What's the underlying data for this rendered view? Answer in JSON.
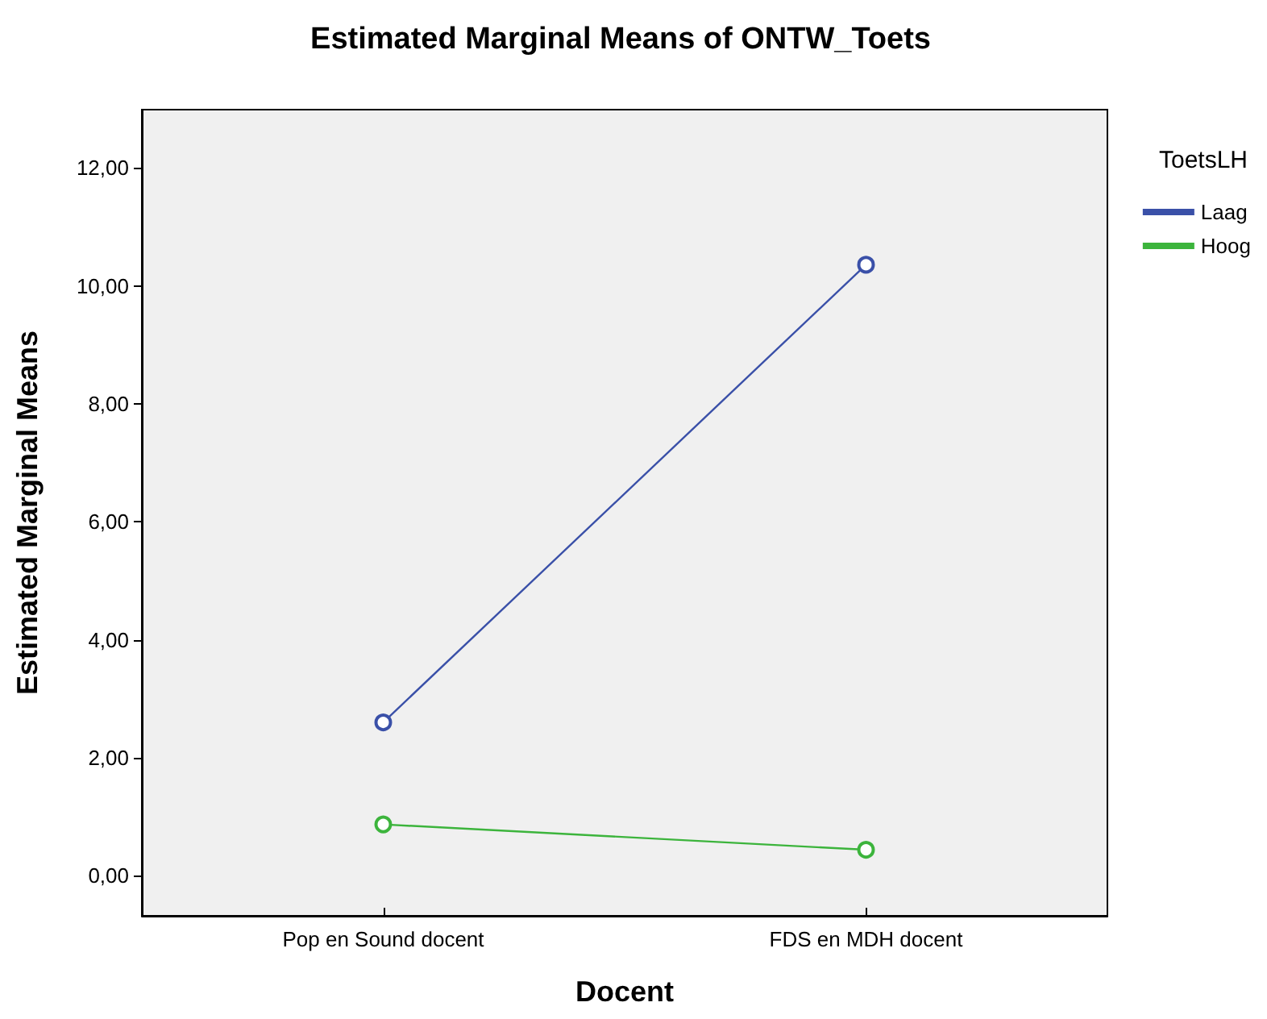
{
  "chart_data": {
    "type": "line",
    "title": "Estimated Marginal Means of ONTW_Toets",
    "xlabel": "Docent",
    "ylabel": "Estimated Marginal Means",
    "legend_title": "ToetsLH",
    "categories": [
      "Pop en Sound docent",
      "FDS en MDH docent"
    ],
    "series": [
      {
        "name": "Laag",
        "color": "#3a50a8",
        "values": [
          2.6,
          10.36
        ]
      },
      {
        "name": "Hoog",
        "color": "#3cb43c",
        "values": [
          0.87,
          0.44
        ]
      }
    ],
    "ylim": [
      -0.68,
      12.99
    ],
    "yticks": [
      {
        "value": 0,
        "label": "0,00"
      },
      {
        "value": 2,
        "label": "2,00"
      },
      {
        "value": 4,
        "label": "4,00"
      },
      {
        "value": 6,
        "label": "6,00"
      },
      {
        "value": 8,
        "label": "8,00"
      },
      {
        "value": 10,
        "label": "10,00"
      },
      {
        "value": 12,
        "label": "12,00"
      }
    ],
    "grid": false,
    "legend": "top right",
    "marker": "circle",
    "line_style": "solid"
  }
}
